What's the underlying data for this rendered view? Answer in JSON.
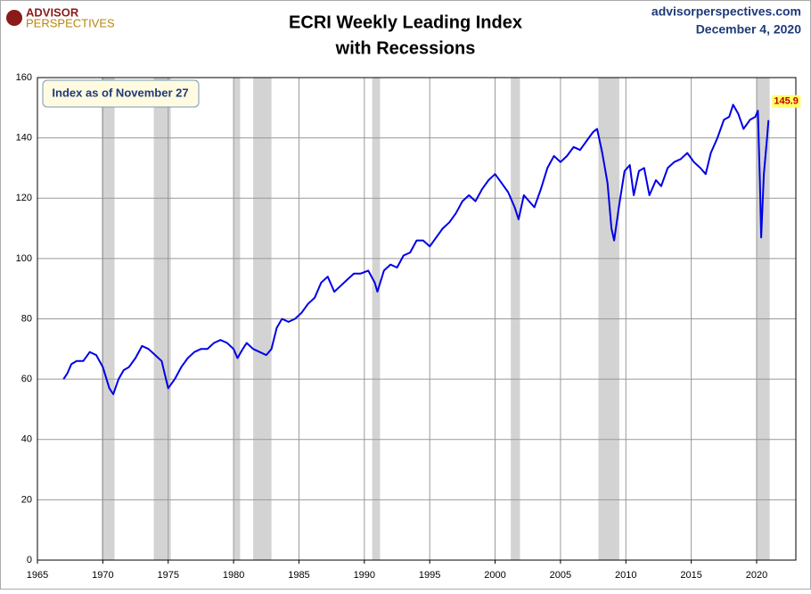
{
  "chart_data": {
    "type": "line",
    "title": [
      "ECRI Weekly Leading Index",
      "with Recessions"
    ],
    "source": "advisorperspectives.com",
    "date": "December 4, 2020",
    "logo": [
      "ADVISOR",
      "PERSPECTIVES"
    ],
    "annotation": "Index as of November 27",
    "xlim": [
      1965,
      2023
    ],
    "ylim": [
      0,
      160
    ],
    "xticks": [
      1965,
      1970,
      1975,
      1980,
      1985,
      1990,
      1995,
      2000,
      2005,
      2010,
      2015,
      2020
    ],
    "yticks": [
      0,
      20,
      40,
      60,
      80,
      100,
      120,
      140,
      160
    ],
    "grid": true,
    "color": "#0000e6",
    "recession_color": "#d3d3d3",
    "recessions": [
      [
        1969.9,
        1970.9
      ],
      [
        1973.9,
        1975.2
      ],
      [
        1980.0,
        1980.5
      ],
      [
        1981.5,
        1982.9
      ],
      [
        1990.6,
        1991.2
      ],
      [
        2001.2,
        2001.9
      ],
      [
        2007.9,
        2009.5
      ],
      [
        2020.0,
        2021.0
      ]
    ],
    "x": [
      1967.0,
      1967.3,
      1967.6,
      1968.0,
      1968.5,
      1969.0,
      1969.5,
      1970.0,
      1970.5,
      1970.8,
      1971.2,
      1971.6,
      1972.0,
      1972.5,
      1973.0,
      1973.5,
      1974.0,
      1974.5,
      1975.0,
      1975.5,
      1976.0,
      1976.5,
      1977.0,
      1977.5,
      1978.0,
      1978.5,
      1979.0,
      1979.5,
      1980.0,
      1980.3,
      1980.7,
      1981.0,
      1981.5,
      1982.0,
      1982.5,
      1982.9,
      1983.3,
      1983.7,
      1984.2,
      1984.7,
      1985.2,
      1985.7,
      1986.2,
      1986.7,
      1987.2,
      1987.7,
      1988.2,
      1988.7,
      1989.2,
      1989.7,
      1990.3,
      1990.8,
      1991.0,
      1991.5,
      1992.0,
      1992.5,
      1993.0,
      1993.5,
      1994.0,
      1994.5,
      1995.0,
      1995.5,
      1996.0,
      1996.5,
      1997.0,
      1997.5,
      1998.0,
      1998.5,
      1999.0,
      1999.5,
      2000.0,
      2000.5,
      2001.0,
      2001.5,
      2001.8,
      2002.2,
      2002.6,
      2003.0,
      2003.5,
      2004.0,
      2004.5,
      2005.0,
      2005.5,
      2006.0,
      2006.5,
      2007.0,
      2007.5,
      2007.8,
      2008.2,
      2008.6,
      2008.9,
      2009.1,
      2009.5,
      2009.9,
      2010.3,
      2010.6,
      2011.0,
      2011.4,
      2011.8,
      2012.3,
      2012.7,
      2013.2,
      2013.7,
      2014.2,
      2014.7,
      2015.2,
      2015.7,
      2016.1,
      2016.5,
      2017.0,
      2017.5,
      2017.9,
      2018.2,
      2018.6,
      2019.0,
      2019.5,
      2019.9,
      2020.1,
      2020.25,
      2020.35,
      2020.55,
      2020.8,
      2020.91
    ],
    "values": [
      60,
      62,
      65,
      66,
      66,
      69,
      68,
      64,
      57,
      55,
      60,
      63,
      64,
      67,
      71,
      70,
      68,
      66,
      57,
      60,
      64,
      67,
      69,
      70,
      70,
      72,
      73,
      72,
      70,
      67,
      70,
      72,
      70,
      69,
      68,
      70,
      77,
      80,
      79,
      80,
      82,
      85,
      87,
      92,
      94,
      89,
      91,
      93,
      95,
      95,
      96,
      92,
      89,
      96,
      98,
      97,
      101,
      102,
      106,
      106,
      104,
      107,
      110,
      112,
      115,
      119,
      121,
      119,
      123,
      126,
      128,
      125,
      122,
      117,
      113,
      121,
      119,
      117,
      123,
      130,
      134,
      132,
      134,
      137,
      136,
      139,
      142,
      143,
      135,
      125,
      110,
      106,
      118,
      129,
      131,
      121,
      129,
      130,
      121,
      126,
      124,
      130,
      132,
      133,
      135,
      132,
      130,
      128,
      135,
      140,
      146,
      147,
      151,
      148,
      143,
      146,
      147,
      149,
      125,
      107,
      128,
      140,
      145.9
    ]
  }
}
